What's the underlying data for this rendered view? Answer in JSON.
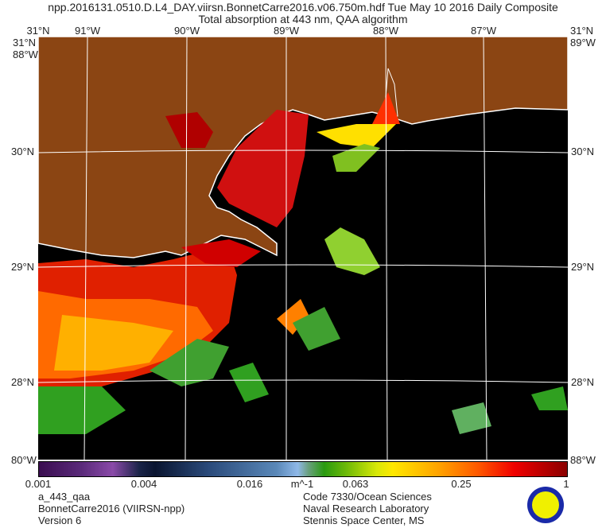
{
  "title": {
    "line1": "npp.2016131.0510.D.L4_DAY.viirsn.BonnetCarre2016.v06.750m.hdf     Tue May 10 2016 Daily Composite",
    "line2": "Total absorption at 443 nm, QAA algorithm"
  },
  "axes": {
    "top_lon_labels": [
      "91°W",
      "90°W",
      "89°W",
      "88°W",
      "87°W"
    ],
    "lat_labels": [
      "30°N",
      "29°N",
      "28°N"
    ],
    "corner_top_left": "31°N",
    "corner_left_lat": "31°N",
    "corner_left_lon": "88°W",
    "corner_right_lat": "31°N",
    "corner_right_lon": "89°W",
    "corner_bottom_left": "80°W",
    "corner_bottom_right": "88°W"
  },
  "colors": {
    "land": "#8b4513",
    "ocean_nodata": "#000000",
    "coastline": "#ffffff",
    "grid": "#ffffff"
  },
  "colorbar": {
    "ticks": [
      "0.001",
      "0.004",
      "0.016",
      "0.063",
      "0.25",
      "1"
    ],
    "units": "m^-1",
    "scale": "log"
  },
  "footer": {
    "left": [
      "a_443_qaa",
      "BonnetCarre2016 (VIIRSN-npp)",
      "Version 6"
    ],
    "right": [
      "Code 7330/Ocean Sciences",
      "Naval Research Laboratory",
      "Stennis Space Center, MS"
    ],
    "logo": "Naval Research Laboratory seal"
  }
}
